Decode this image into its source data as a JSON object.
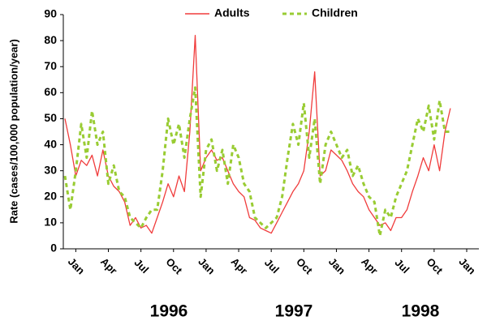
{
  "chart_data": {
    "type": "line",
    "y_label": "Rate (cases/100,000 population/year)",
    "year_labels": [
      "1996",
      "1997",
      "1998"
    ],
    "xlim": [
      -1,
      36
    ],
    "ylim": [
      0,
      90
    ],
    "yticks": [
      0,
      10,
      20,
      30,
      40,
      50,
      60,
      70,
      80,
      90
    ],
    "xticks": [
      {
        "value": 0,
        "label": "Jan"
      },
      {
        "value": 3,
        "label": "Apr"
      },
      {
        "value": 6,
        "label": "Jul"
      },
      {
        "value": 9,
        "label": "Oct"
      },
      {
        "value": 12,
        "label": "Jan"
      },
      {
        "value": 15,
        "label": "Apr"
      },
      {
        "value": 18,
        "label": "Jul"
      },
      {
        "value": 21,
        "label": "Oct"
      },
      {
        "value": 24,
        "label": "Jan"
      },
      {
        "value": 27,
        "label": "Apr"
      },
      {
        "value": 30,
        "label": "Jul"
      },
      {
        "value": 33,
        "label": "Oct"
      },
      {
        "value": 36,
        "label": "Jan"
      }
    ],
    "legend": "top",
    "x": [
      -1,
      -0.5,
      0,
      0.5,
      1,
      1.5,
      2,
      2.5,
      3,
      3.5,
      4,
      4.5,
      5,
      5.5,
      6,
      6.5,
      7,
      7.5,
      8,
      8.5,
      9,
      9.5,
      10,
      10.5,
      11,
      11.5,
      12,
      12.5,
      13,
      13.5,
      14,
      14.5,
      15,
      15.5,
      16,
      16.5,
      17,
      17.5,
      18,
      18.5,
      19,
      19.5,
      20,
      20.5,
      21,
      21.5,
      22,
      22.5,
      23,
      23.5,
      24,
      24.5,
      25,
      25.5,
      26,
      26.5,
      27,
      27.5,
      28,
      28.5,
      29,
      29.5,
      30,
      30.5,
      31,
      31.5,
      32,
      32.5,
      33,
      33.5,
      34,
      34.5
    ],
    "series": [
      {
        "name": "Adults",
        "color": "#f03c3c",
        "dash": false,
        "values": [
          50,
          40,
          28,
          34,
          32,
          36,
          28,
          38,
          28,
          24,
          22,
          18,
          9,
          12,
          8,
          9,
          6,
          12,
          18,
          25,
          20,
          28,
          22,
          45,
          82,
          30,
          35,
          38,
          34,
          35,
          30,
          25,
          22,
          20,
          12,
          11,
          8,
          7,
          6,
          10,
          14,
          18,
          22,
          25,
          30,
          45,
          68,
          28,
          30,
          38,
          36,
          34,
          30,
          25,
          22,
          20,
          15,
          12,
          9,
          10,
          7,
          12,
          12,
          15,
          22,
          28,
          35,
          30,
          40,
          30,
          45,
          54
        ]
      },
      {
        "name": "Children",
        "color": "#99cc33",
        "dash": true,
        "values": [
          28,
          15,
          30,
          48,
          35,
          53,
          40,
          45,
          25,
          32,
          22,
          20,
          12,
          10,
          8,
          12,
          15,
          15,
          30,
          50,
          40,
          48,
          35,
          50,
          62,
          20,
          38,
          42,
          30,
          38,
          25,
          40,
          35,
          25,
          22,
          12,
          10,
          8,
          10,
          12,
          20,
          35,
          48,
          40,
          56,
          35,
          50,
          25,
          40,
          45,
          40,
          35,
          38,
          28,
          32,
          25,
          20,
          18,
          5,
          15,
          12,
          20,
          25,
          30,
          40,
          50,
          45,
          55,
          42,
          57,
          45,
          45
        ]
      }
    ]
  }
}
